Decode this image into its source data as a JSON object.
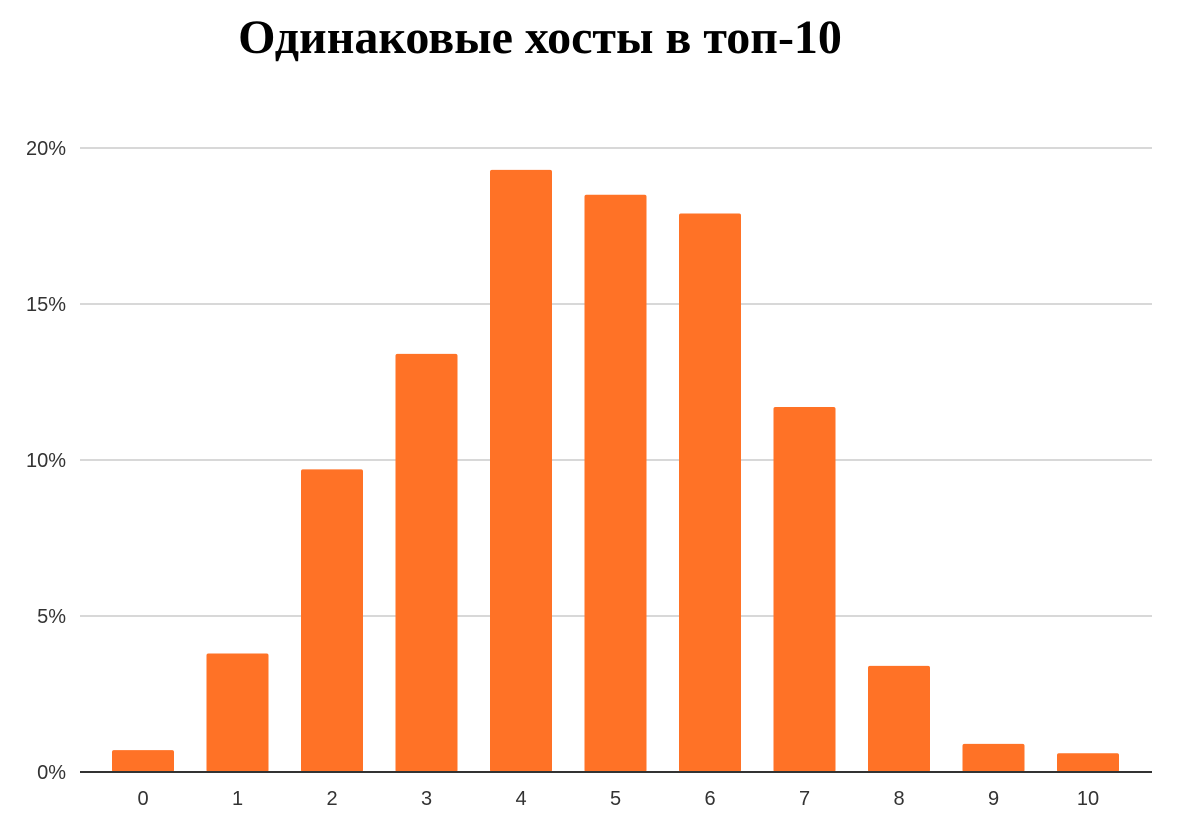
{
  "chart_data": {
    "type": "bar",
    "title": "Одинаковые хосты в топ-10",
    "categories": [
      "0",
      "1",
      "2",
      "3",
      "4",
      "5",
      "6",
      "7",
      "8",
      "9",
      "10"
    ],
    "values": [
      0.7,
      3.8,
      9.7,
      13.4,
      19.3,
      18.5,
      17.9,
      11.7,
      3.4,
      0.9,
      0.6
    ],
    "y_ticks": [
      "0%",
      "5%",
      "10%",
      "15%",
      "20%"
    ],
    "y_tick_values": [
      0,
      5,
      10,
      15,
      20
    ],
    "ylim": [
      0,
      20
    ],
    "xlabel": "",
    "ylabel": "",
    "grid": true,
    "legend": "none",
    "colors": {
      "bar": "#FF7226",
      "grid": "#CCCCCC",
      "axis": "#333333"
    }
  }
}
